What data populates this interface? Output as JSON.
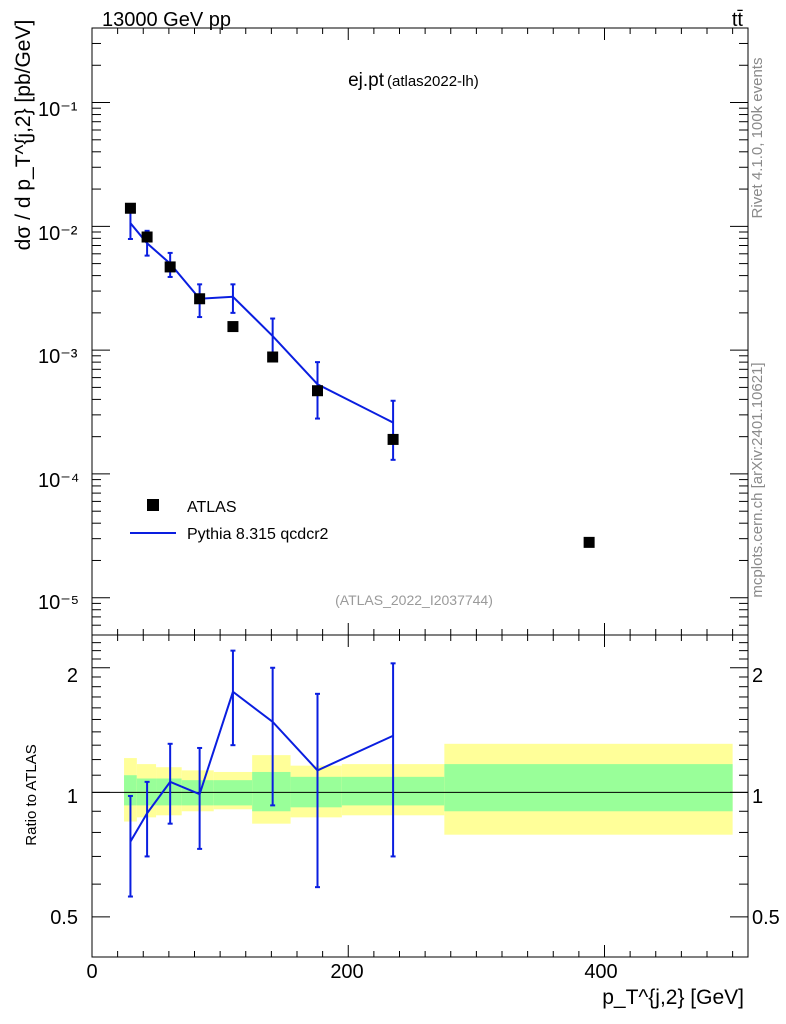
{
  "header": {
    "energy_label": "13000 GeV pp",
    "process_label": "tt̄",
    "title_main": "ej.pt",
    "title_sub": "(atlas2022-lh)",
    "side_rivet": "Rivet 4.1.0,  100k events",
    "side_mcplots": "mcplots.cern.ch [arXiv:2401.10621]",
    "analysis_id": "(ATLAS_2022_I2037744)"
  },
  "axes": {
    "y_main_label": "dσ / d p_T^{j,2} [pb/GeV]",
    "y_ratio_label": "Ratio to ATLAS",
    "x_label": "p_T^{j,2} [GeV]",
    "x_ticks": [
      "0",
      "200",
      "400"
    ],
    "y_main_ticks": [
      "10⁻¹",
      "10⁻²",
      "10⁻³",
      "10⁻⁴",
      "10⁻⁵"
    ],
    "y_ratio_ticks": [
      "2",
      "1",
      "0.5"
    ]
  },
  "legend": {
    "data_label": "ATLAS",
    "mc_label": "Pythia 8.315 qcdcr2"
  },
  "colors": {
    "mc": "#0a1ee0",
    "data": "#000000",
    "band_inner": "#99ff99",
    "band_outer": "#ffff99"
  },
  "chart_data": [
    {
      "type": "scatter",
      "title": "ej.pt (atlas2022-lh)",
      "xlabel": "p_T^{j,2} [GeV]",
      "ylabel": "dσ / d p_T^{j,2} [pb/GeV]",
      "xlim": [
        0,
        512
      ],
      "ylim": [
        5e-06,
        0.4
      ],
      "yscale": "log",
      "series": [
        {
          "name": "ATLAS",
          "x": [
            30,
            43,
            61,
            84,
            110,
            141,
            176,
            235,
            388
          ],
          "y": [
            0.014,
            0.0082,
            0.0047,
            0.0026,
            0.00155,
            0.00088,
            0.00047,
            0.00019,
            2.8e-05
          ]
        },
        {
          "name": "Pythia 8.315 qcdcr2",
          "x": [
            30,
            43,
            61,
            84,
            110,
            141,
            176,
            235
          ],
          "y": [
            0.0106,
            0.0073,
            0.005,
            0.0026,
            0.0027,
            0.0013,
            0.00053,
            0.00026
          ],
          "y_low": [
            0.0079,
            0.0058,
            0.0039,
            0.00185,
            0.002,
            0.00095,
            0.00028,
            0.00013
          ],
          "y_high": [
            0.0136,
            0.0092,
            0.0061,
            0.0034,
            0.0034,
            0.0018,
            0.0008,
            0.00039
          ]
        }
      ]
    },
    {
      "type": "line",
      "title": "Ratio to ATLAS",
      "xlabel": "p_T^{j,2} [GeV]",
      "ylabel": "Ratio to ATLAS",
      "xlim": [
        0,
        512
      ],
      "ylim": [
        0.4,
        2.4
      ],
      "yscale": "log",
      "reference": 1.0,
      "bins": [
        {
          "x0": 25,
          "x1": 35,
          "inner": [
            0.93,
            1.1
          ],
          "outer": [
            0.85,
            1.21
          ]
        },
        {
          "x0": 35,
          "x1": 50,
          "inner": [
            0.93,
            1.08
          ],
          "outer": [
            0.87,
            1.17
          ]
        },
        {
          "x0": 50,
          "x1": 70,
          "inner": [
            0.93,
            1.08
          ],
          "outer": [
            0.88,
            1.15
          ]
        },
        {
          "x0": 70,
          "x1": 95,
          "inner": [
            0.93,
            1.07
          ],
          "outer": [
            0.9,
            1.13
          ]
        },
        {
          "x0": 95,
          "x1": 125,
          "inner": [
            0.93,
            1.07
          ],
          "outer": [
            0.91,
            1.12
          ]
        },
        {
          "x0": 125,
          "x1": 155,
          "inner": [
            0.9,
            1.12
          ],
          "outer": [
            0.84,
            1.23
          ]
        },
        {
          "x0": 155,
          "x1": 195,
          "inner": [
            0.92,
            1.09
          ],
          "outer": [
            0.87,
            1.16
          ]
        },
        {
          "x0": 195,
          "x1": 275,
          "inner": [
            0.93,
            1.09
          ],
          "outer": [
            0.88,
            1.17
          ]
        },
        {
          "x0": 275,
          "x1": 500,
          "inner": [
            0.9,
            1.17
          ],
          "outer": [
            0.79,
            1.31
          ]
        }
      ],
      "series": [
        {
          "name": "Pythia 8.315 qcdcr2",
          "x": [
            30,
            43,
            61,
            84,
            110,
            141,
            176,
            235
          ],
          "y": [
            0.76,
            0.89,
            1.06,
            0.99,
            1.75,
            1.48,
            1.13,
            1.37
          ],
          "y_low": [
            0.56,
            0.7,
            0.84,
            0.73,
            1.3,
            0.93,
            0.59,
            0.7
          ],
          "y_high": [
            0.98,
            1.06,
            1.31,
            1.28,
            2.2,
            2.0,
            1.73,
            2.05
          ]
        }
      ]
    }
  ]
}
